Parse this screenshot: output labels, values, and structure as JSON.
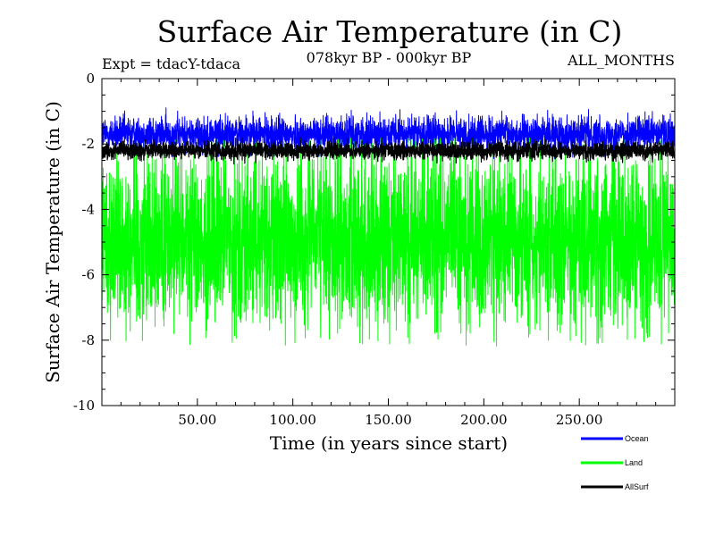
{
  "chart_data": {
    "type": "line",
    "title": "Surface Air Temperature (in C)",
    "subtitle": "078kyr BP - 000kyr BP",
    "expt_label": "Expt = tdacY-tdaca",
    "months_label": "ALL_MONTHS",
    "xlabel": "Time (in years since start)",
    "ylabel": "Surface Air Temperature (in C)",
    "xlim": [
      0,
      300
    ],
    "ylim": [
      -10,
      0
    ],
    "x_ticks": [
      50,
      100,
      150,
      200,
      250
    ],
    "x_tick_labels": [
      "50.00",
      "100.00",
      "150.00",
      "200.00",
      "250.00"
    ],
    "y_ticks": [
      0,
      -2,
      -4,
      -6,
      -8,
      -10
    ],
    "y_tick_labels": [
      "0",
      "-2",
      "-4",
      "-6",
      "-8",
      "-10"
    ],
    "grid": false,
    "legend_position": "bottom-right",
    "series": [
      {
        "name": "Ocean",
        "color": "#0000ff",
        "approx_range": [
          -2.6,
          -0.7
        ],
        "typical_range": [
          -2.3,
          -1.1
        ]
      },
      {
        "name": "Land",
        "color": "#00ff00",
        "approx_range": [
          -8.2,
          -1.8
        ],
        "typical_range": [
          -7.5,
          -2.3
        ]
      },
      {
        "name": "AllSurf",
        "color": "#000000",
        "approx_range": [
          -2.8,
          -1.8
        ],
        "typical_range": [
          -2.4,
          -2.0
        ]
      }
    ]
  }
}
